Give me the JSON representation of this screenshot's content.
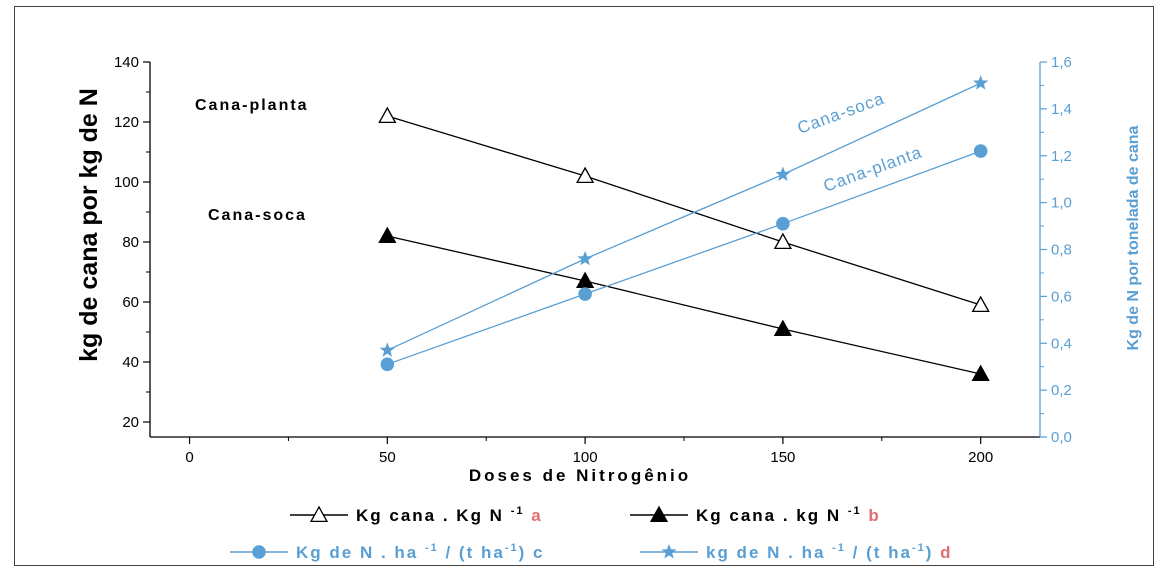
{
  "chart_data": {
    "type": "line",
    "title": "",
    "xlabel": "Doses de Nitrogênio",
    "ylabel_left": "kg de cana por kg de N",
    "ylabel_right": "Kg de N por tonelada de cana",
    "xlim": [
      -10,
      215
    ],
    "ylim_left": [
      15,
      140
    ],
    "ylim_right": [
      0,
      1.6
    ],
    "x_ticks": [
      "0",
      "50",
      "100",
      "150",
      "200"
    ],
    "y_ticks_left": [
      "20",
      "40",
      "60",
      "80",
      "100",
      "120",
      "140"
    ],
    "y_ticks_right": [
      "0,0",
      "0,2",
      "0,4",
      "0,6",
      "0,8",
      "1,0",
      "1,2",
      "1,4",
      "1,6"
    ],
    "grid": false,
    "legend_position": "bottom",
    "colors": {
      "left_axis": "#000000",
      "right_axis": "#5a9fd4",
      "legend_letter": "#e07070"
    },
    "series": [
      {
        "axis": "left",
        "marker": "open-triangle",
        "x": [
          50,
          100,
          150,
          200
        ],
        "values": [
          122,
          102,
          80,
          59
        ],
        "legend": {
          "text": "Kg cana . Kg N",
          "sup": "-1",
          "letter": "a"
        }
      },
      {
        "axis": "left",
        "marker": "filled-triangle",
        "x": [
          50,
          100,
          150,
          200
        ],
        "values": [
          82,
          67,
          51,
          36
        ],
        "legend": {
          "text": "Kg cana . kg N",
          "sup": "-1",
          "letter": "b"
        }
      },
      {
        "axis": "right",
        "marker": "circle",
        "x": [
          50,
          100,
          150,
          200
        ],
        "values": [
          0.31,
          0.61,
          0.91,
          1.22
        ],
        "legend": {
          "text": "Kg de N . ha",
          "sup": "-1",
          "text2": " / (t ha",
          "sup2": "-1",
          "text3": ") c",
          "letter": ""
        }
      },
      {
        "axis": "right",
        "marker": "star",
        "x": [
          50,
          100,
          150,
          200
        ],
        "values": [
          0.37,
          0.76,
          1.12,
          1.51
        ],
        "legend": {
          "text": "kg de N . ha",
          "sup": "-1",
          "text2": " / (t ha",
          "sup2": "-1",
          "text3": ") ",
          "letter": "d"
        }
      }
    ],
    "annotations": {
      "cana_planta_black": "Cana-planta",
      "cana_soca_black": "Cana-soca",
      "cana_soca_blue": "Cana-soca",
      "cana_planta_blue": "Cana-planta"
    }
  }
}
